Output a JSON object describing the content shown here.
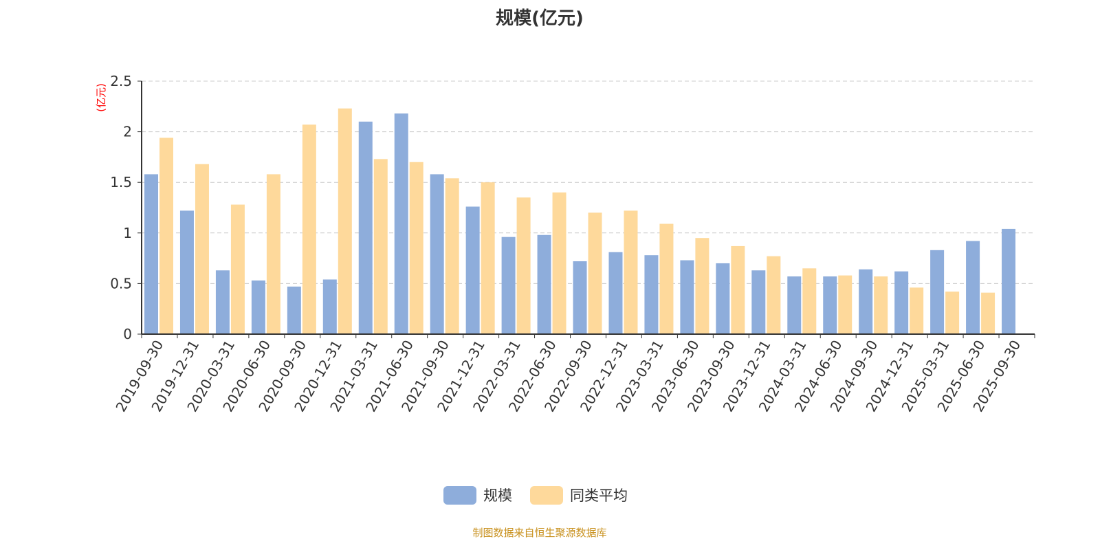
{
  "chart_data": {
    "type": "bar",
    "title": "规模(亿元)",
    "ylabel": "(亿元)",
    "xlabel": "",
    "ylim": [
      0,
      2.5
    ],
    "yticks": [
      "0",
      "0.5",
      "1",
      "1.5",
      "2",
      "2.5"
    ],
    "grid": true,
    "legend_position": "bottom",
    "categories": [
      "2019-09-30",
      "2019-12-31",
      "2020-03-31",
      "2020-06-30",
      "2020-09-30",
      "2020-12-31",
      "2021-03-31",
      "2021-06-30",
      "2021-09-30",
      "2021-12-31",
      "2022-03-31",
      "2022-06-30",
      "2022-09-30",
      "2022-12-31",
      "2023-03-31",
      "2023-06-30",
      "2023-09-30",
      "2023-12-31",
      "2024-03-31",
      "2024-06-30",
      "2024-09-30",
      "2024-12-31",
      "2025-03-31",
      "2025-06-30",
      "2025-09-30"
    ],
    "series": [
      {
        "name": "规模",
        "color": "#8eaddb",
        "values": [
          1.58,
          1.22,
          0.63,
          0.53,
          0.47,
          0.54,
          2.1,
          2.18,
          1.58,
          1.26,
          0.96,
          0.98,
          0.72,
          0.81,
          0.78,
          0.73,
          0.7,
          0.63,
          0.57,
          0.57,
          0.64,
          0.62,
          0.83,
          0.92,
          1.04
        ]
      },
      {
        "name": "同类平均",
        "color": "#fed99b",
        "values": [
          1.94,
          1.68,
          1.28,
          1.58,
          2.07,
          2.23,
          1.73,
          1.7,
          1.54,
          1.5,
          1.35,
          1.4,
          1.2,
          1.22,
          1.09,
          0.95,
          0.87,
          0.77,
          0.65,
          0.58,
          0.57,
          0.46,
          0.42,
          0.41,
          null
        ]
      }
    ]
  },
  "source": "制图数据来自恒生聚源数据库"
}
